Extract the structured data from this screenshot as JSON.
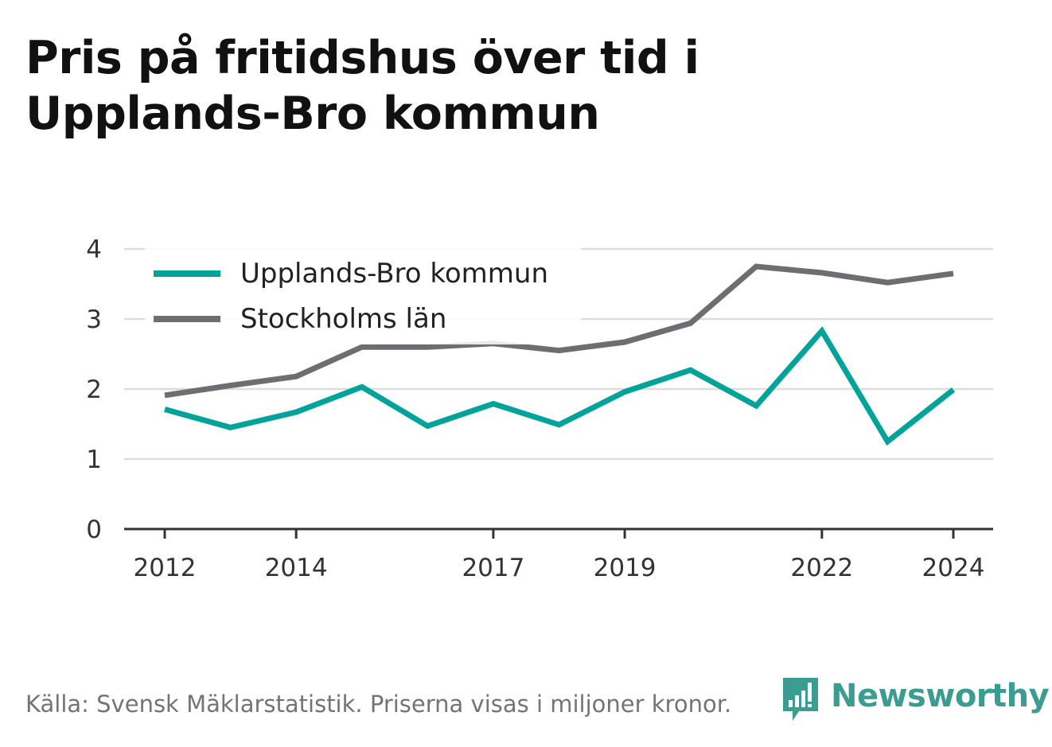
{
  "title": "Pris på fritidshus över tid i Upplands-Bro kommun",
  "source": "Källa: Svensk Mäklarstatistik. Priserna visas i miljoner kronor.",
  "brand": {
    "name": "Newsworthy",
    "icon": "newsworthy-logo-icon",
    "color": "#3b9c92"
  },
  "chart_data": {
    "type": "line",
    "x": [
      2012,
      2013,
      2014,
      2015,
      2016,
      2017,
      2018,
      2019,
      2020,
      2021,
      2022,
      2023,
      2024
    ],
    "x_tick_labels": [
      "2012",
      "2014",
      "2017",
      "2019",
      "2022",
      "2024"
    ],
    "y_ticks": [
      "0",
      "1",
      "2",
      "3",
      "4"
    ],
    "ylim": [
      0,
      4
    ],
    "grid": true,
    "legend_position": "top-left",
    "series": [
      {
        "name": "Upplands-Bro kommun",
        "color": "#00a39a",
        "values": [
          1.71,
          1.45,
          1.67,
          2.03,
          1.47,
          1.79,
          1.49,
          1.96,
          2.27,
          1.76,
          2.83,
          1.25,
          1.99
        ]
      },
      {
        "name": "Stockholms län",
        "color": "#6d6d72",
        "values": [
          1.91,
          2.05,
          2.18,
          2.6,
          2.6,
          2.65,
          2.55,
          2.67,
          2.94,
          3.75,
          3.66,
          3.52,
          3.65
        ]
      }
    ]
  }
}
